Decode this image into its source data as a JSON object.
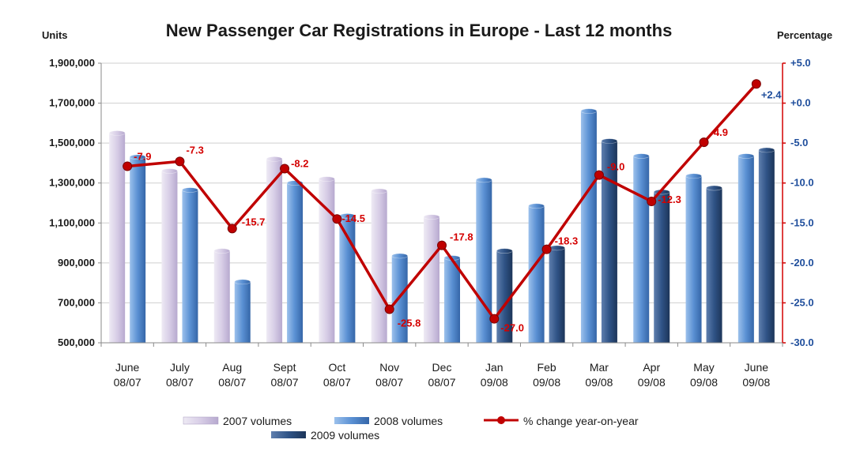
{
  "chart_data": {
    "type": "bar",
    "title": "New Passenger Car Registrations in Europe - Last 12 months",
    "ylabel": "Units",
    "y2label": "Percentage",
    "ylim": [
      500000,
      1900000
    ],
    "y2lim": [
      -30,
      5
    ],
    "yticks": [
      "1,900,000",
      "1,700,000",
      "1,500,000",
      "1,300,000",
      "1,100,000",
      "900,000",
      "700,000",
      "500,000"
    ],
    "y2ticks": [
      "+5.0",
      "+0.0",
      "-5.0",
      "-10.0",
      "-15.0",
      "-20.0",
      "-25.0",
      "-30.0"
    ],
    "categories": [
      [
        "June",
        "08/07"
      ],
      [
        "July",
        "08/07"
      ],
      [
        "Aug",
        "08/07"
      ],
      [
        "Sept",
        "08/07"
      ],
      [
        "Oct",
        "08/07"
      ],
      [
        "Nov",
        "08/07"
      ],
      [
        "Dec",
        "08/07"
      ],
      [
        "Jan",
        "09/08"
      ],
      [
        "Feb",
        "09/08"
      ],
      [
        "Mar",
        "09/08"
      ],
      [
        "Apr",
        "09/08"
      ],
      [
        "May",
        "09/08"
      ],
      [
        "June",
        "09/08"
      ]
    ],
    "series": [
      {
        "name": "2007 volumes",
        "color": "#d8cfe6",
        "values": [
          1550000,
          1360000,
          960000,
          1420000,
          1320000,
          1260000,
          1130000,
          null,
          null,
          null,
          null,
          null,
          null
        ]
      },
      {
        "name": "2008 volumes",
        "color": "#5b8fd0",
        "values": [
          1430000,
          1265000,
          805000,
          1300000,
          1135000,
          935000,
          925000,
          1315000,
          1185000,
          1660000,
          1435000,
          1335000,
          1435000
        ]
      },
      {
        "name": "2009 volumes",
        "color": "#2c4f7f",
        "values": [
          null,
          null,
          null,
          null,
          null,
          null,
          null,
          960000,
          975000,
          1510000,
          1255000,
          1275000,
          1465000
        ]
      }
    ],
    "line_series": {
      "name": "% change year-on-year",
      "color": "#c00000",
      "values": [
        -7.9,
        -7.3,
        -15.7,
        -8.2,
        -14.5,
        -25.8,
        -17.8,
        -27.0,
        -18.3,
        -9.0,
        -12.3,
        -4.9,
        2.4
      ],
      "labels": [
        "-7.9",
        "-7.3",
        "-15.7",
        "-8.2",
        "-14.5",
        "-25.8",
        "-17.8",
        "-27.0",
        "-18.3",
        "-9.0",
        "-12.3",
        "-4.9",
        "+2.4"
      ]
    },
    "legend_position": "bottom"
  }
}
